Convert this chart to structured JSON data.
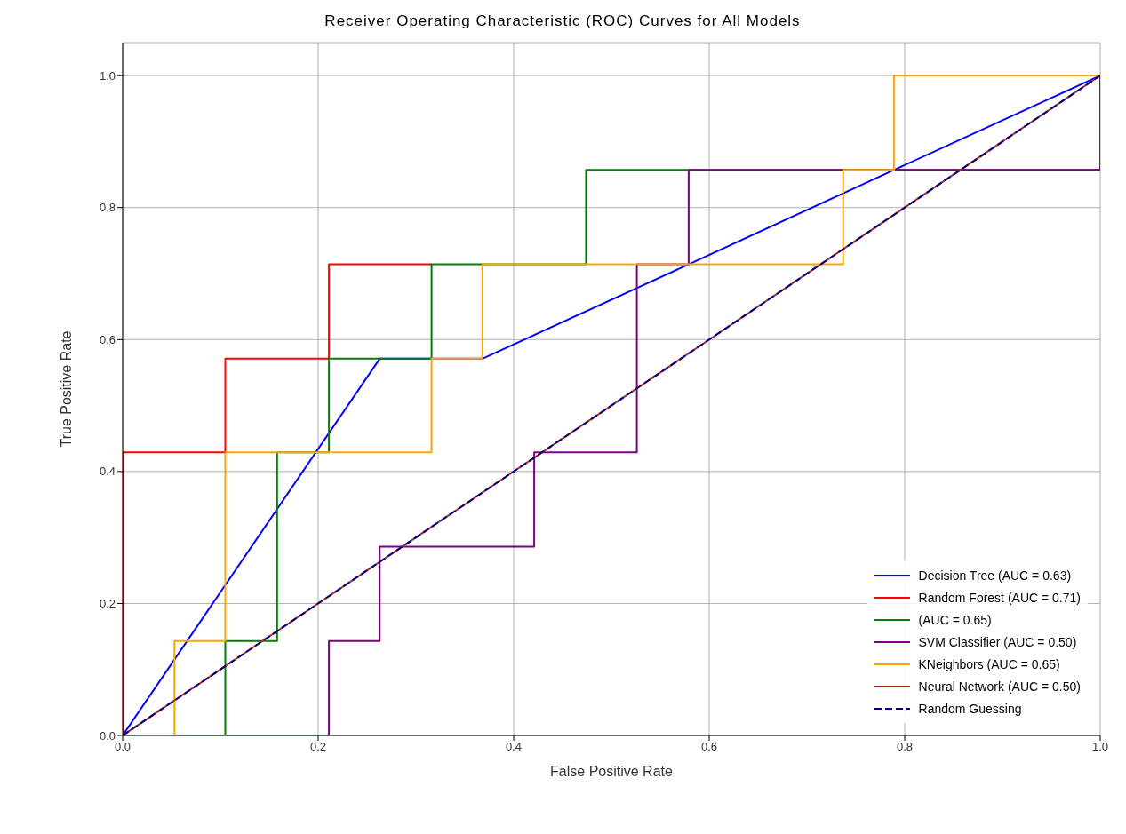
{
  "chart_data": {
    "type": "line",
    "title": "Receiver Operating Characteristic (ROC) Curves for All Models",
    "xlabel": "False Positive Rate",
    "ylabel": "True Positive Rate",
    "xlim": [
      0,
      1
    ],
    "ylim": [
      0,
      1.05
    ],
    "xticks": [
      {
        "value": 0,
        "label": "0.0"
      },
      {
        "value": 0.2,
        "label": "0.2"
      },
      {
        "value": 0.4,
        "label": "0.4"
      },
      {
        "value": 0.6,
        "label": "0.6"
      },
      {
        "value": 0.8,
        "label": "0.8"
      },
      {
        "value": 1,
        "label": "1.0"
      }
    ],
    "yticks": [
      {
        "value": 0,
        "label": "0.0"
      },
      {
        "value": 0.2,
        "label": "0.2"
      },
      {
        "value": 0.4,
        "label": "0.4"
      },
      {
        "value": 0.6,
        "label": "0.6"
      },
      {
        "value": 0.8,
        "label": "0.8"
      },
      {
        "value": 1,
        "label": "1.0"
      }
    ],
    "grid": true,
    "legend": "bottom right",
    "marker": "none",
    "series": [
      {
        "name": "Decision Tree (AUC = 0.63)",
        "color": "#0000ff",
        "line_style": "solid",
        "x": [
          0,
          0.263,
          0.368,
          0.579,
          0.789,
          1
        ],
        "values": [
          0,
          0.571,
          0.571,
          0.714,
          0.857,
          1
        ]
      },
      {
        "name": "Random Forest (AUC = 0.71)",
        "color": "#ff0000",
        "line_style": "solid",
        "x": [
          0,
          0,
          0.105,
          0.105,
          0.211,
          0.211,
          0.316
        ],
        "values": [
          0,
          0.429,
          0.429,
          0.571,
          0.571,
          0.714,
          0.714
        ]
      },
      {
        "name": "(AUC = 0.65)",
        "color": "#008000",
        "line_style": "solid",
        "x": [
          0,
          0.105,
          0.105,
          0.158,
          0.158,
          0.211,
          0.211,
          0.316,
          0.316,
          0.474,
          0.474,
          1,
          1
        ],
        "values": [
          0,
          0,
          0.143,
          0.143,
          0.429,
          0.429,
          0.571,
          0.571,
          0.714,
          0.714,
          0.857,
          0.857,
          1
        ]
      },
      {
        "name": "SVM Classifier (AUC = 0.50)",
        "color": "#800080",
        "line_style": "solid",
        "x": [
          0,
          0.211,
          0.211,
          0.263,
          0.263,
          0.421,
          0.421,
          0.526,
          0.526,
          0.579,
          0.579,
          1,
          1
        ],
        "values": [
          0,
          0,
          0.143,
          0.143,
          0.286,
          0.286,
          0.429,
          0.429,
          0.714,
          0.714,
          0.857,
          0.857,
          1
        ]
      },
      {
        "name": "KNeighbors (AUC = 0.65)",
        "color": "#ffa500",
        "line_style": "solid",
        "x": [
          0,
          0.053,
          0.053,
          0.105,
          0.105,
          0.316,
          0.316,
          0.368,
          0.368,
          0.737,
          0.737,
          0.789,
          0.789,
          1
        ],
        "values": [
          0,
          0,
          0.143,
          0.143,
          0.429,
          0.429,
          0.571,
          0.571,
          0.714,
          0.714,
          0.857,
          0.857,
          1,
          1
        ]
      },
      {
        "name": "Neural Network (AUC = 0.50)",
        "color": "#a52a2a",
        "line_style": "solid",
        "x": [
          0,
          1
        ],
        "values": [
          0,
          1
        ]
      },
      {
        "name": "Random Guessing",
        "color": "#000080",
        "line_style": "dashed",
        "x": [
          0,
          1
        ],
        "values": [
          0,
          1
        ]
      }
    ]
  }
}
